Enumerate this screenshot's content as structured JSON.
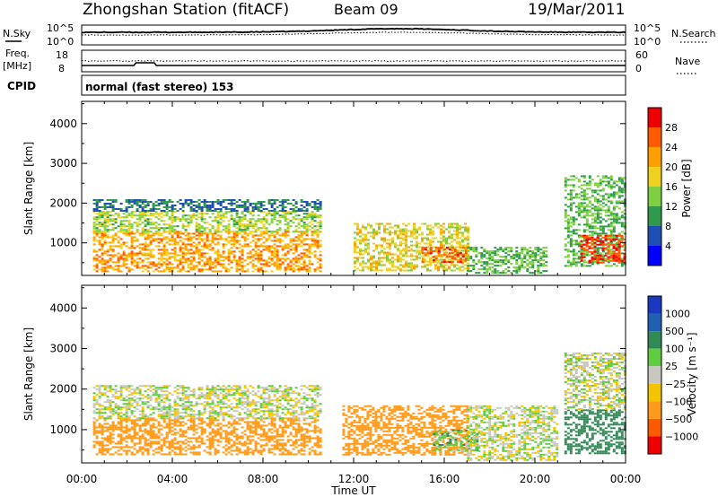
{
  "header": {
    "station": "Zhongshan Station (fitACF)",
    "beam": "Beam 09",
    "date": "19/Mar/2011"
  },
  "strips": {
    "nsky_label": "N.Sky",
    "nsky_ticks": [
      "10^5",
      "10^0"
    ],
    "nsearch_label": "N.Search",
    "freq_label_1": "Freq.",
    "freq_label_2": "[MHz]",
    "freq_ticks": [
      "18",
      "8"
    ],
    "nave_ticks": [
      "60",
      "0"
    ],
    "nave_label": "Nave",
    "cpid_label": "CPID",
    "cpid_text": "normal (fast stereo) 153"
  },
  "colors": {
    "power": [
      "#0000ff",
      "#1f4fb4",
      "#2e9a4a",
      "#7fd040",
      "#f0d020",
      "#ffa000",
      "#ff5a00",
      "#ee0000"
    ],
    "velocity": [
      "#ee0000",
      "#ff5a00",
      "#ff9a1a",
      "#f5c400",
      "#c8c8c0",
      "#60cc40",
      "#308a55",
      "#1f5fb4",
      "#1a38c0"
    ]
  },
  "chart_data": [
    {
      "type": "heatmap",
      "quantity": "power",
      "ylabel": "Slant Range [km]",
      "xlabel": "Time UT",
      "x_ticks": [
        "00:00",
        "04:00",
        "08:00",
        "12:00",
        "16:00",
        "20:00",
        "00:00"
      ],
      "y_ticks": [
        1000,
        2000,
        3000,
        4000
      ],
      "ylim": [
        180,
        4560
      ],
      "colorbar": {
        "label": "Power [dB]",
        "ticks": [
          "4",
          "8",
          "12",
          "16",
          "20",
          "24",
          "28"
        ],
        "range": [
          0,
          32
        ]
      },
      "echo_regions": [
        {
          "t": [
            0.5,
            10.5
          ],
          "r": [
            300,
            1300
          ],
          "value": 22
        },
        {
          "t": [
            0.5,
            10.5
          ],
          "r": [
            1300,
            1800
          ],
          "value": 15
        },
        {
          "t": [
            0.5,
            10.5
          ],
          "r": [
            1800,
            2100
          ],
          "value": 8
        },
        {
          "t": [
            12,
            17
          ],
          "r": [
            300,
            1500
          ],
          "value": 18
        },
        {
          "t": [
            15,
            17
          ],
          "r": [
            500,
            900
          ],
          "value": 26
        },
        {
          "t": [
            17,
            20.5
          ],
          "r": [
            250,
            900
          ],
          "value": 12
        },
        {
          "t": [
            21.3,
            24
          ],
          "r": [
            400,
            2700
          ],
          "value": 12
        },
        {
          "t": [
            22,
            24
          ],
          "r": [
            500,
            1200
          ],
          "value": 28
        }
      ]
    },
    {
      "type": "heatmap",
      "quantity": "velocity",
      "ylabel": "Slant Range [km]",
      "xlabel": "Time UT",
      "x_ticks": [
        "00:00",
        "04:00",
        "08:00",
        "12:00",
        "16:00",
        "20:00",
        "00:00"
      ],
      "y_ticks": [
        1000,
        2000,
        3000,
        4000
      ],
      "ylim": [
        180,
        4560
      ],
      "colorbar": {
        "label": "Velocity [m s⁻¹]",
        "ticks": [
          "1000",
          "500",
          "100",
          "25",
          "−25",
          "−100",
          "−500",
          "−1000"
        ]
      },
      "echo_regions": [
        {
          "t": [
            0.5,
            10.5
          ],
          "r": [
            400,
            1300
          ],
          "value": -200
        },
        {
          "t": [
            0.5,
            10.5
          ],
          "r": [
            1300,
            2100
          ],
          "value": 0
        },
        {
          "t": [
            11.5,
            17
          ],
          "r": [
            400,
            1600
          ],
          "value": -200
        },
        {
          "t": [
            15.5,
            17.5
          ],
          "r": [
            500,
            1000
          ],
          "value": 60
        },
        {
          "t": [
            17,
            21
          ],
          "r": [
            250,
            1600
          ],
          "value": 0
        },
        {
          "t": [
            21.3,
            24
          ],
          "r": [
            400,
            1500
          ],
          "value": 300
        },
        {
          "t": [
            21.3,
            24
          ],
          "r": [
            1500,
            2900
          ],
          "value": 0
        }
      ]
    }
  ]
}
